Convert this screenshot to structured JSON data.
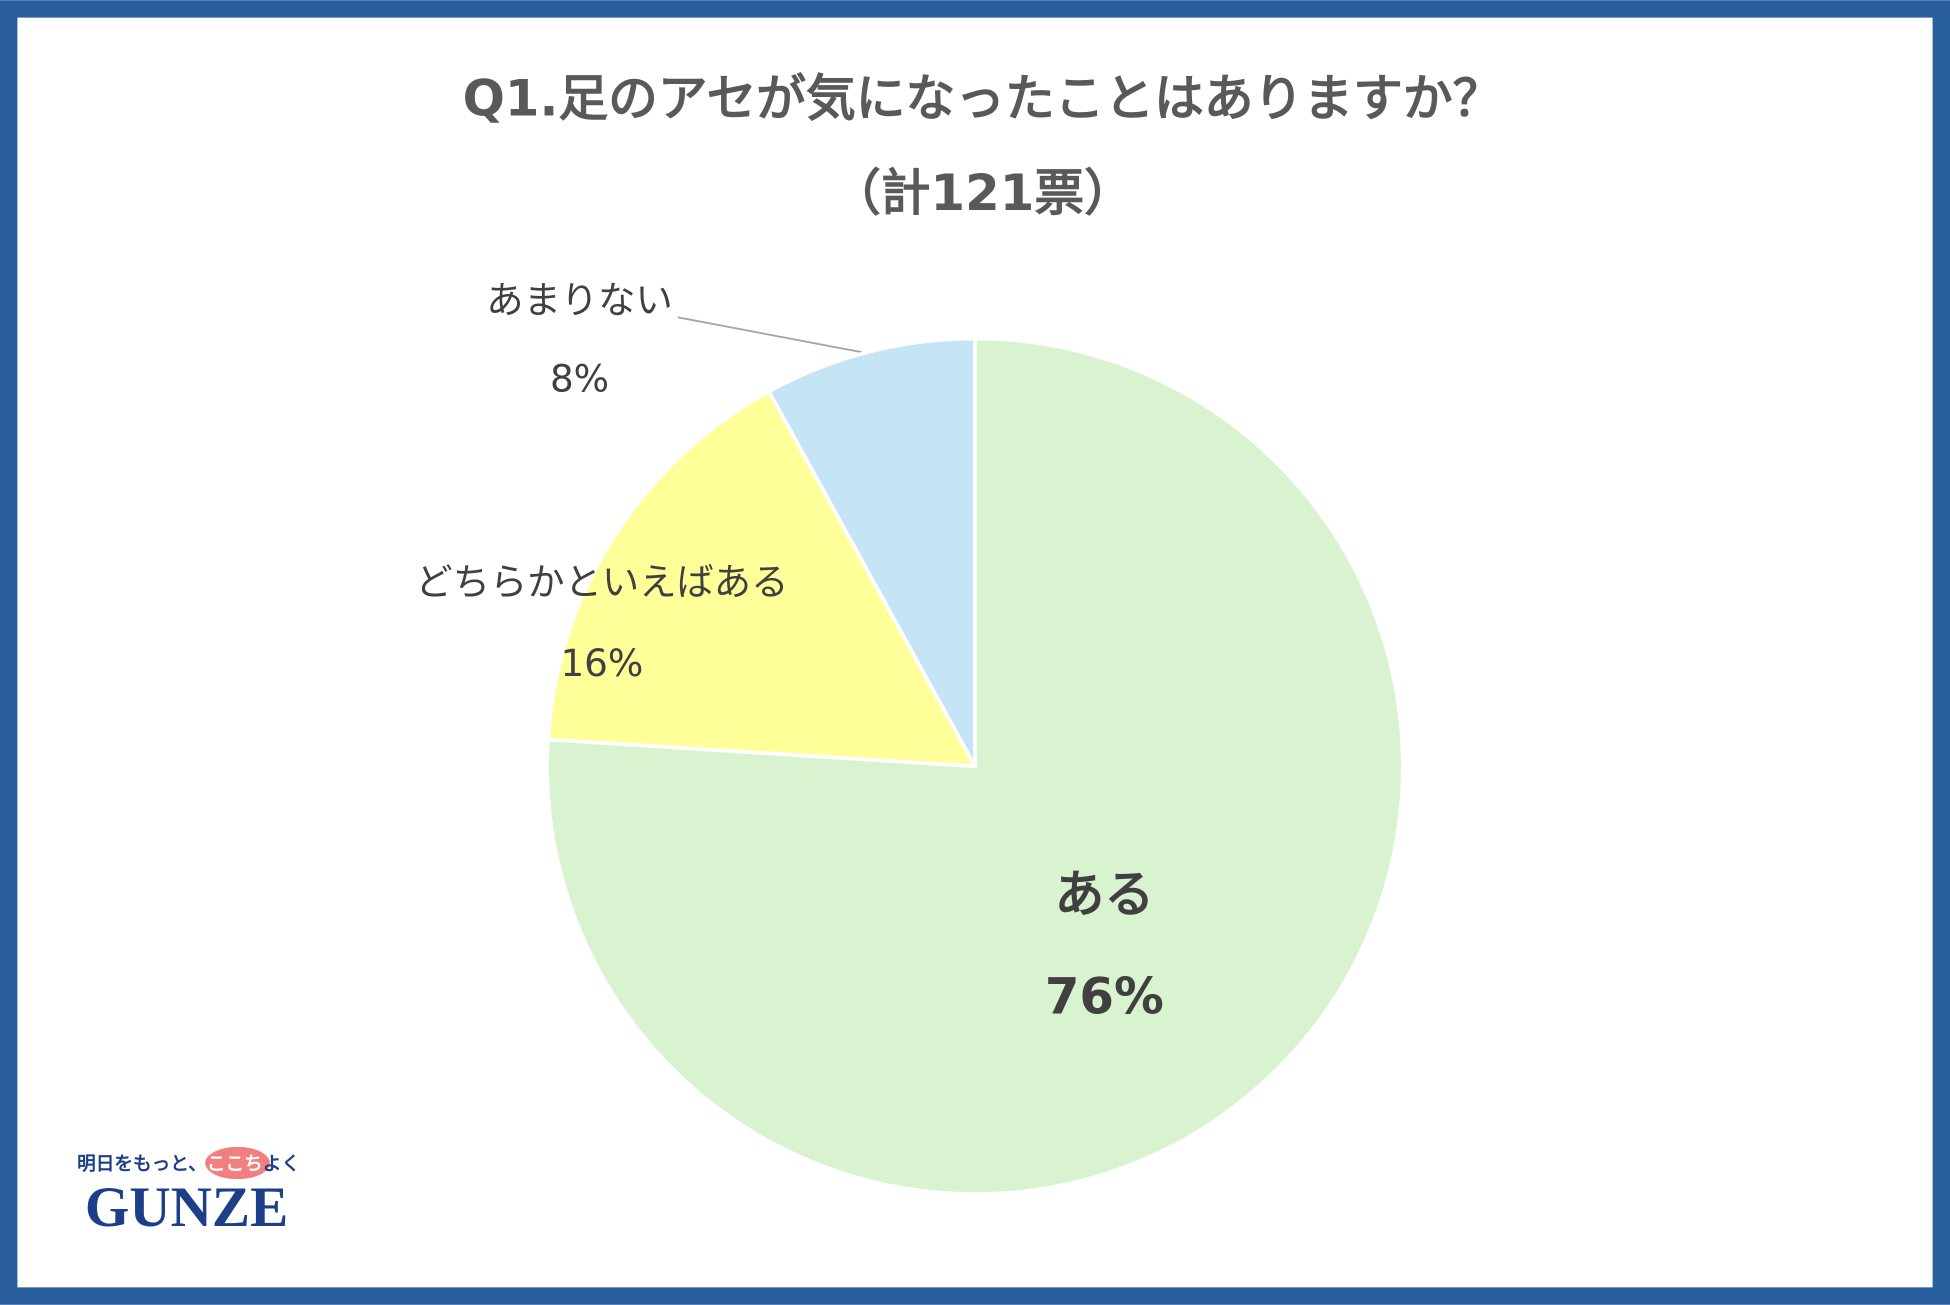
{
  "chart_data": {
    "type": "pie",
    "title": "Q1.足のアセが気になったことはありますか？",
    "subtitle": "（計121票）",
    "categories": [
      "ある",
      "どちらかといえばある",
      "あまりない"
    ],
    "values": [
      76,
      16,
      8
    ],
    "value_labels": [
      "76%",
      "16%",
      "8%"
    ],
    "colors": [
      "#d9f2d0",
      "#ffff99",
      "#c5e4f5"
    ]
  },
  "logo": {
    "tagline": [
      "明日をもっと、",
      "ここち",
      "よく"
    ],
    "name": "GUNZE"
  }
}
